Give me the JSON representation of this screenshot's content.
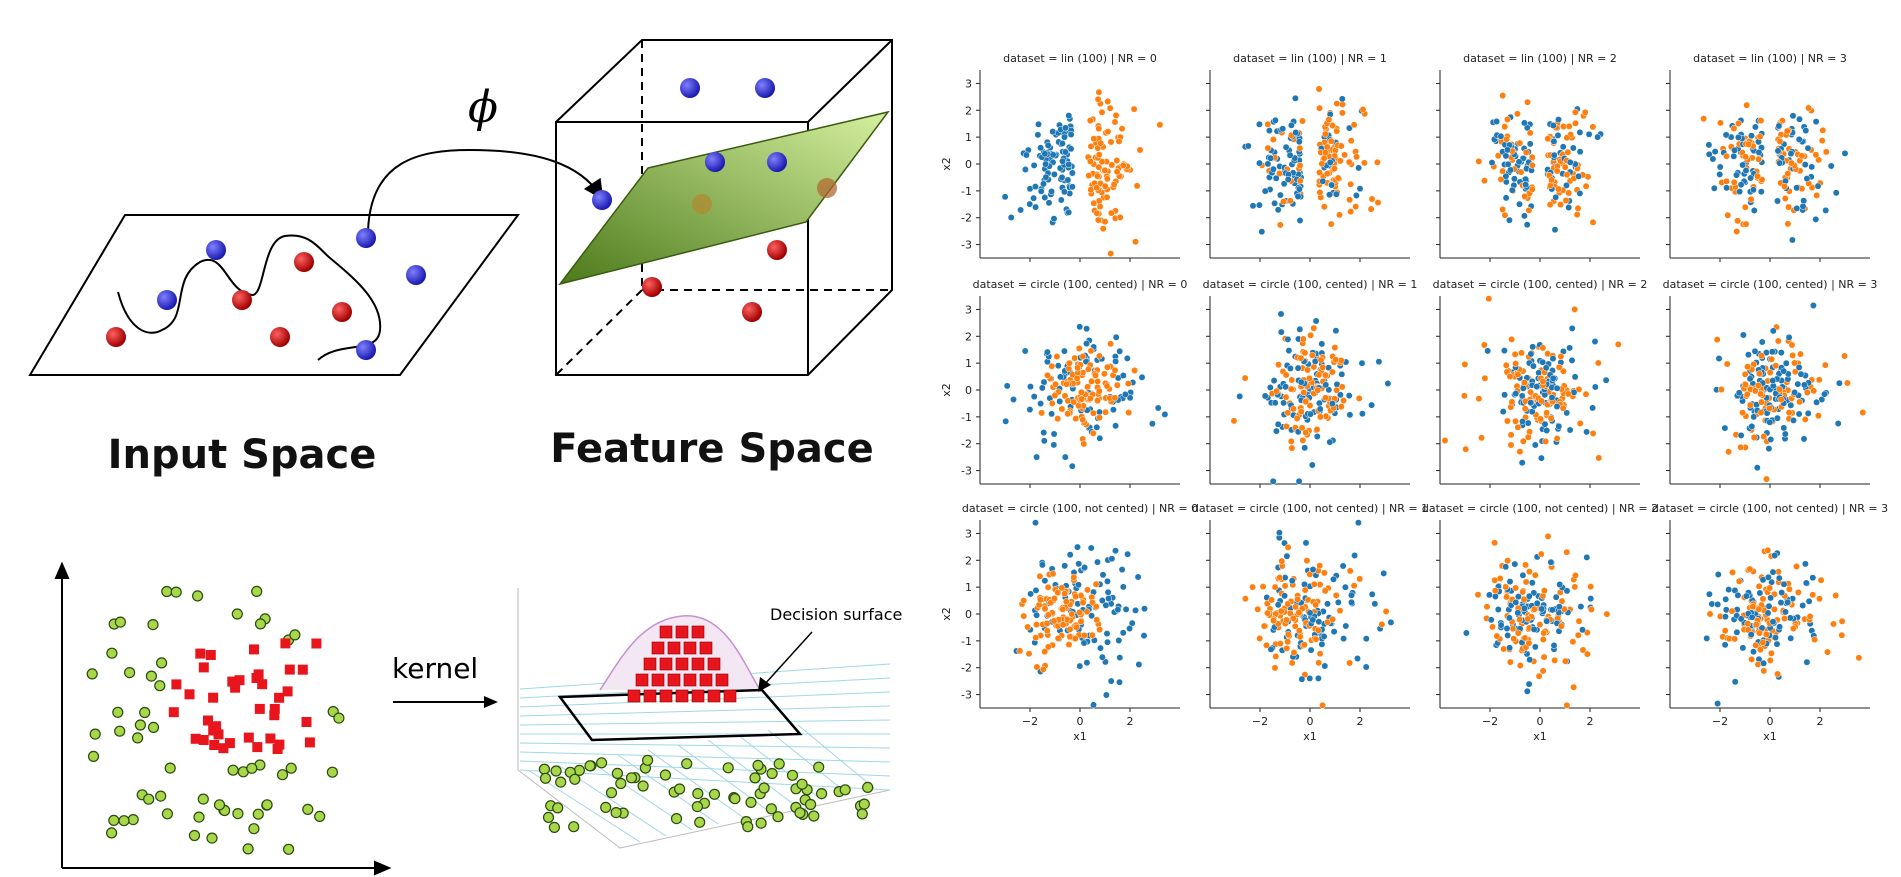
{
  "diagram": {
    "phi_label": "ϕ",
    "input_space_label": "Input Space",
    "feature_space_label": "Feature Space",
    "kernel_label": "kernel",
    "decision_surface_label": "Decision surface"
  },
  "colors": {
    "class_a": "#1f77b4",
    "class_b": "#ff7f0e",
    "diagram_blue": "#2a2ad0",
    "diagram_red": "#cc1111",
    "hyperplane": "#9ccc5a",
    "green_point": "#a8d84a",
    "red_square": "#e8161c"
  },
  "chart_data": {
    "type": "scatter",
    "layout": "3x4 facet grid",
    "xlabel": "x1",
    "ylabel": "x2",
    "xlim": [
      -4,
      4
    ],
    "ylim": [
      -3.5,
      3.5
    ],
    "xticks": [
      -2,
      0,
      2
    ],
    "yticks": [
      -3,
      -2,
      -1,
      0,
      1,
      2,
      3
    ],
    "legend": "none",
    "panels": [
      {
        "title": "dataset = lin (100) | NR = 0",
        "pattern": "lin",
        "mix": 0.0
      },
      {
        "title": "dataset = lin (100) | NR = 1",
        "pattern": "lin",
        "mix": 0.25
      },
      {
        "title": "dataset = lin (100) | NR = 2",
        "pattern": "lin",
        "mix": 0.45
      },
      {
        "title": "dataset = lin (100) | NR = 3",
        "pattern": "lin",
        "mix": 0.5
      },
      {
        "title": "dataset = circle (100, cented) | NR = 0",
        "pattern": "circle",
        "mix": 0.0
      },
      {
        "title": "dataset = circle (100, cented) | NR = 1",
        "pattern": "circle",
        "mix": 0.25
      },
      {
        "title": "dataset = circle (100, cented) | NR = 2",
        "pattern": "circle",
        "mix": 0.45
      },
      {
        "title": "dataset = circle (100, cented) | NR = 3",
        "pattern": "circle",
        "mix": 0.5
      },
      {
        "title": "dataset = circle (100, not cented) | NR = 0",
        "pattern": "offcircle",
        "mix": 0.0
      },
      {
        "title": "dataset = circle (100, not cented) | NR = 1",
        "pattern": "offcircle",
        "mix": 0.25
      },
      {
        "title": "dataset = circle (100, not cented) | NR = 2",
        "pattern": "offcircle",
        "mix": 0.45
      },
      {
        "title": "dataset = circle (100, not cented) | NR = 3",
        "pattern": "offcircle",
        "mix": 0.5
      }
    ],
    "points_per_class": 100
  }
}
